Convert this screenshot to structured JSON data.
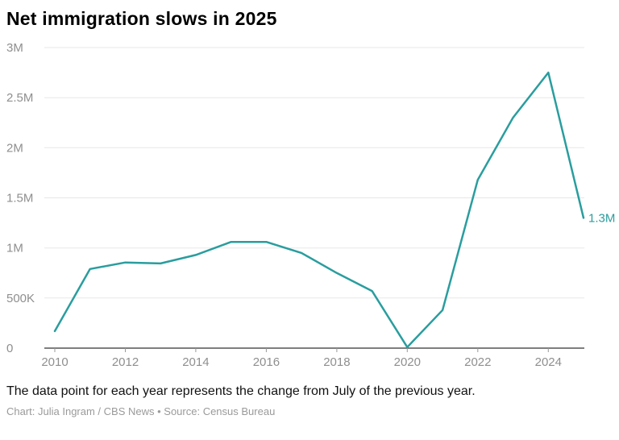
{
  "title": "Net immigration slows in 2025",
  "note": "The data point for each year represents the change from July of the previous year.",
  "credit": "Chart: Julia Ingram / CBS News • Source: Census Bureau",
  "chart_data": {
    "type": "line",
    "title": "Net immigration slows in 2025",
    "series_name": "Net immigration (change from July of previous year)",
    "x": [
      2010,
      2011,
      2012,
      2013,
      2014,
      2015,
      2016,
      2017,
      2018,
      2019,
      2020,
      2021,
      2022,
      2023,
      2024,
      2025
    ],
    "values": [
      170000,
      790000,
      855000,
      845000,
      930000,
      1060000,
      1060000,
      950000,
      750000,
      570000,
      10000,
      380000,
      1680000,
      2300000,
      2750000,
      1300000
    ],
    "x_ticks": [
      2010,
      2012,
      2014,
      2016,
      2018,
      2020,
      2022,
      2024
    ],
    "x_tick_labels": [
      "2010",
      "2012",
      "2014",
      "2016",
      "2018",
      "2020",
      "2022",
      "2024"
    ],
    "y_ticks": [
      0,
      500000,
      1000000,
      1500000,
      2000000,
      2500000,
      3000000
    ],
    "y_tick_labels": [
      "0",
      "500K",
      "1M",
      "1.5M",
      "2M",
      "2.5M",
      "3M"
    ],
    "xlim": [
      2010,
      2025
    ],
    "ylim": [
      0,
      3000000
    ],
    "end_label": "1.3M",
    "grid": "horizontal",
    "legend": "none",
    "line_color": "#2a9d9e",
    "grid_color": "#e7e7e7",
    "axis_color": "#333333",
    "tick_color": "#999999",
    "tick_label_color": "#8f8f8f"
  }
}
